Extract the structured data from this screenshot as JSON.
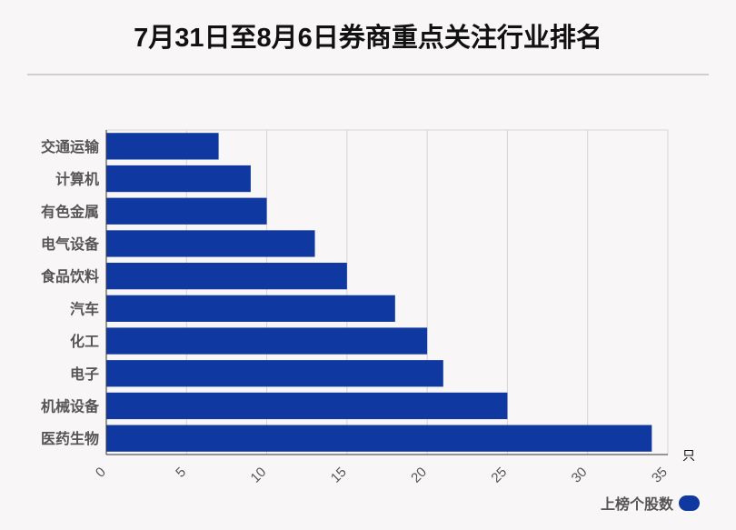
{
  "chart_data": {
    "type": "bar",
    "orientation": "horizontal",
    "title": "7月31日至8月6日券商重点关注行业排名",
    "categories": [
      "交通运输",
      "计算机",
      "有色金属",
      "电气设备",
      "食品饮料",
      "汽车",
      "化工",
      "电子",
      "机械设备",
      "医药生物"
    ],
    "series": [
      {
        "name": "上榜个股数",
        "values": [
          7,
          9,
          10,
          13,
          15,
          18,
          20,
          21,
          25,
          34
        ]
      }
    ],
    "xlim": [
      0,
      35
    ],
    "xticks": [
      "0",
      "5",
      "10",
      "15",
      "20",
      "25",
      "30",
      "35"
    ],
    "xunit": "只",
    "xlabel": "",
    "ylabel": "",
    "grid": true,
    "legend_position": "bottom-right",
    "bar_color": "#0f38a0"
  }
}
